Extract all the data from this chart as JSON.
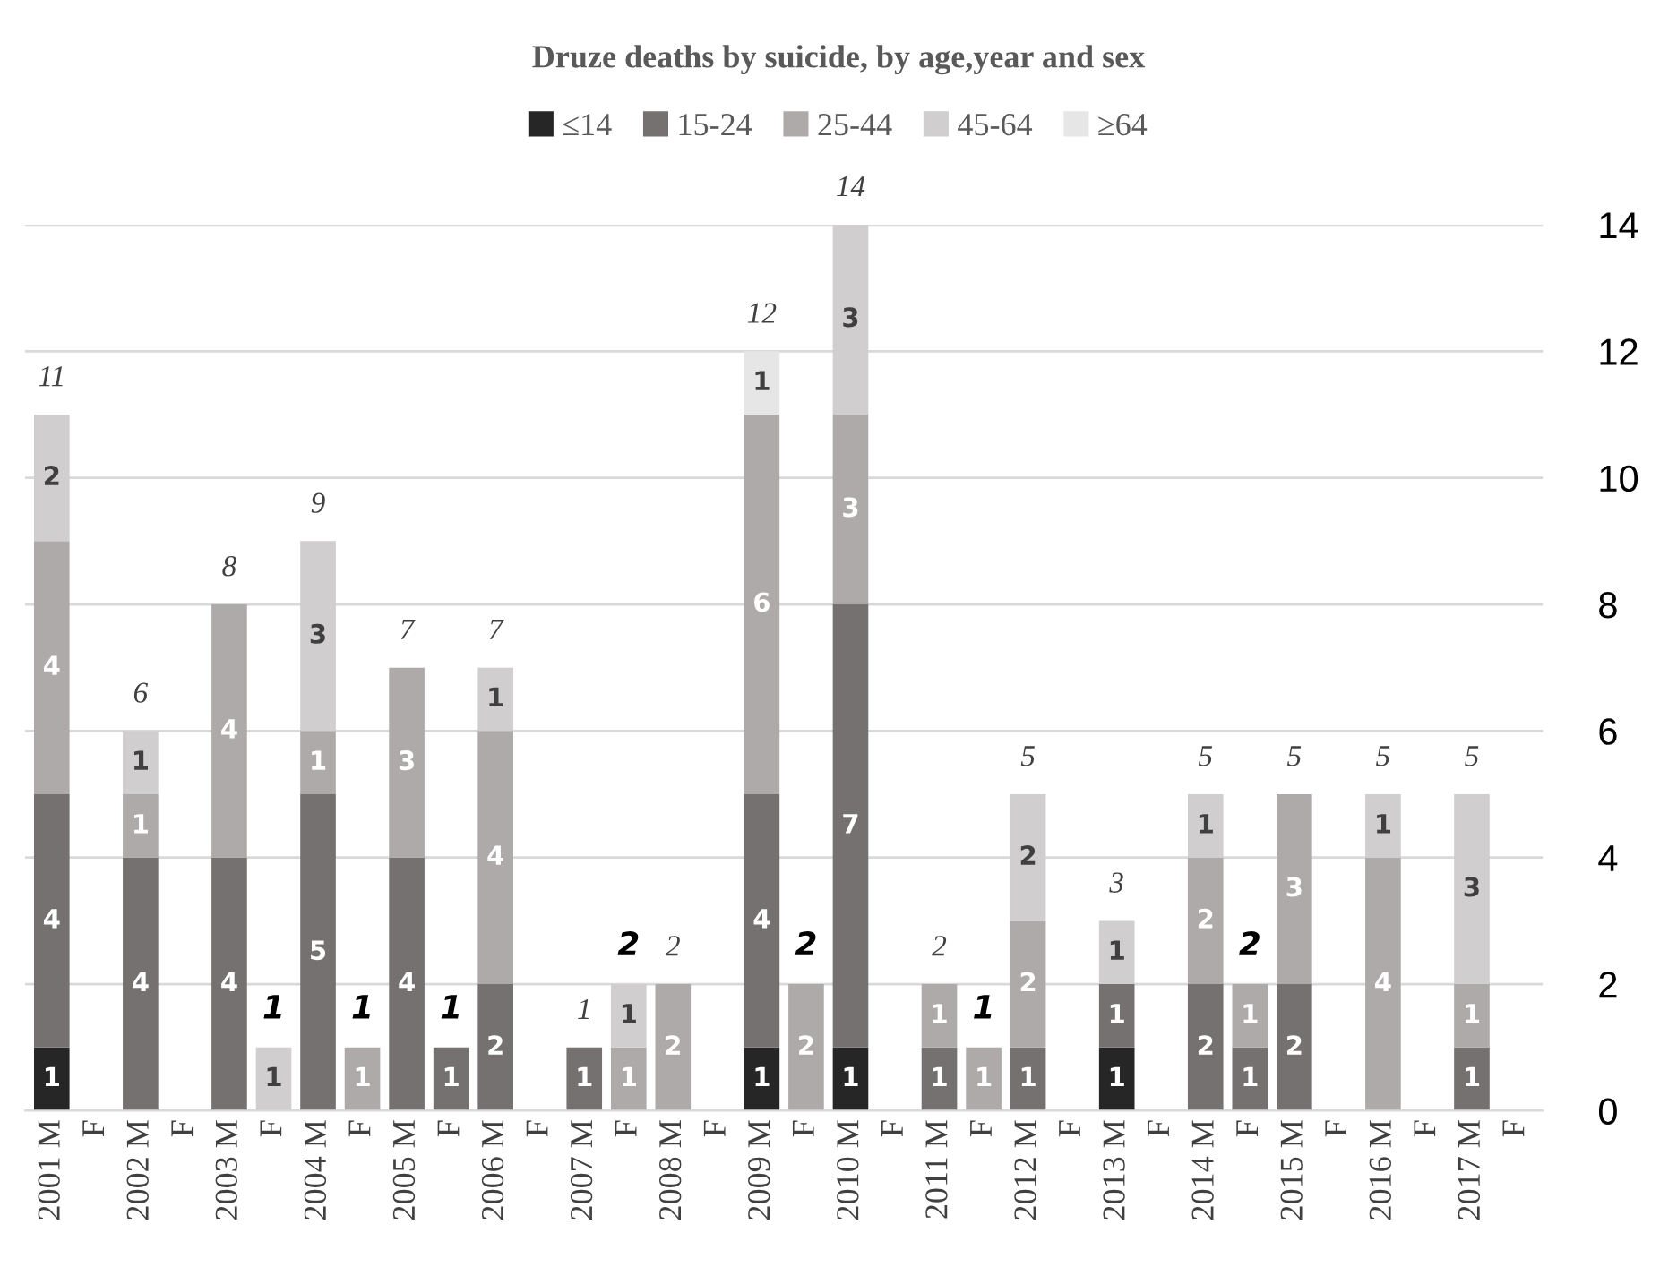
{
  "chart_data": {
    "type": "bar",
    "stacked": true,
    "title": "Druze deaths by suicide, by age,year and sex",
    "categories": [
      "2001 M",
      "F",
      "2002 M",
      "F",
      "2003 M",
      "F",
      "2004 M",
      "F",
      "2005 M",
      "F",
      "2006 M",
      "F",
      "2007 M",
      "F",
      "2008 M",
      "F",
      "2009 M",
      "F",
      "2010 M",
      "F",
      "2011 M",
      "F",
      "2012 M",
      "F",
      "2013 M",
      "F",
      "2014 M",
      "F",
      "2015 M",
      "F",
      "2016 M",
      "F",
      "2017 M",
      "F"
    ],
    "series": [
      {
        "name": "≤14",
        "color": "#262626",
        "values": [
          1,
          null,
          null,
          null,
          null,
          null,
          null,
          null,
          null,
          null,
          null,
          null,
          null,
          null,
          null,
          null,
          1,
          null,
          1,
          null,
          null,
          null,
          null,
          null,
          1,
          null,
          null,
          null,
          null,
          null,
          null,
          null,
          null,
          null
        ]
      },
      {
        "name": "15-24",
        "color": "#767171",
        "values": [
          4,
          null,
          4,
          null,
          4,
          null,
          5,
          null,
          4,
          1,
          2,
          null,
          1,
          null,
          null,
          null,
          4,
          null,
          7,
          null,
          1,
          null,
          1,
          null,
          1,
          null,
          2,
          1,
          2,
          null,
          null,
          null,
          1,
          null
        ]
      },
      {
        "name": "25-44",
        "color": "#aeaaaa",
        "values": [
          4,
          null,
          1,
          null,
          4,
          null,
          1,
          1,
          3,
          null,
          4,
          null,
          null,
          1,
          2,
          null,
          6,
          2,
          3,
          null,
          1,
          1,
          2,
          null,
          null,
          null,
          2,
          1,
          3,
          null,
          4,
          null,
          1,
          null
        ]
      },
      {
        "name": "45-64",
        "color": "#d0cece",
        "values": [
          2,
          null,
          1,
          null,
          null,
          1,
          3,
          null,
          null,
          null,
          1,
          null,
          null,
          1,
          null,
          null,
          null,
          null,
          3,
          null,
          null,
          null,
          2,
          null,
          1,
          null,
          1,
          null,
          null,
          null,
          1,
          null,
          3,
          null
        ]
      },
      {
        "name": "≥64",
        "color": "#e7e6e6",
        "values": [
          null,
          null,
          null,
          null,
          null,
          null,
          null,
          null,
          null,
          null,
          null,
          null,
          null,
          null,
          null,
          null,
          1,
          null,
          null,
          null,
          null,
          null,
          null,
          null,
          null,
          null,
          null,
          null,
          null,
          null,
          null,
          null,
          null,
          null
        ]
      }
    ],
    "data_labels": true,
    "totals": [
      "11",
      null,
      "6",
      null,
      "8",
      "1",
      "9",
      "1",
      "7",
      "1",
      "7",
      null,
      "1",
      "2",
      "2",
      null,
      "12",
      "2",
      "14",
      null,
      "2",
      "1",
      "5",
      null,
      "3",
      null,
      "5",
      "2",
      "5",
      null,
      "5",
      null,
      "5",
      null
    ],
    "ylim": [
      0,
      14
    ],
    "yticks": [
      0,
      2,
      4,
      6,
      8,
      10,
      12,
      14
    ],
    "grid": "y",
    "legend": "top"
  }
}
